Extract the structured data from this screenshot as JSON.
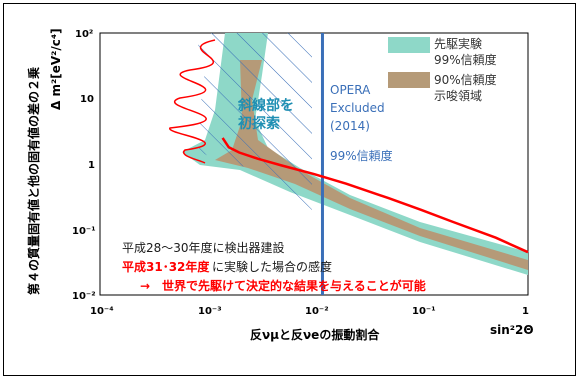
{
  "chart_data": {
    "type": "line",
    "xscale": "log",
    "yscale": "log",
    "xlim": [
      0.0001,
      1
    ],
    "ylim": [
      0.01,
      100
    ],
    "xticks": [
      "10⁻⁴",
      "10⁻³",
      "10⁻²",
      "10⁻¹",
      "1"
    ],
    "yticks": [
      "10⁻²",
      "10⁻¹",
      "1",
      "10",
      "10²"
    ],
    "xlabel": "反νμと反νeの振動割合",
    "xlabel_right": "sin²2Θ",
    "ylabel": "第４の質量固有値と他の固有値の差の２乗",
    "ylabel_unit": "Δ m²[eV²/c⁴]",
    "legend": [
      {
        "label_line1": "先駆実験",
        "label_line2": "99%信頼度",
        "color": "#8ed8c8"
      },
      {
        "label_line1": "90%信頼度",
        "label_line2": "示唆領域",
        "color": "#b59a78"
      }
    ],
    "series": [
      {
        "name": "",
        "color": "#ff0000",
        "x": [
          0.0014,
          0.0016,
          0.002,
          0.003,
          0.005,
          0.01,
          0.02,
          0.05,
          0.1,
          0.2,
          0.5,
          1.0
        ],
        "y": [
          2.5,
          1.8,
          1.5,
          1.2,
          0.95,
          0.7,
          0.5,
          0.3,
          0.2,
          0.13,
          0.075,
          0.045
        ]
      }
    ],
    "annotations": {
      "opera": {
        "line1": "OPERA",
        "line2": "Excluded",
        "line3": "(2014)",
        "x": 0.012
      },
      "hatched_label_line1": "斜線部を",
      "hatched_label_line2": "初探索",
      "conf_label": "99%信頼度",
      "text_line1": "平成28〜30年度に検出器建設",
      "text_line2_red": "平成31･32年度",
      "text_line2_rest": "に実験した場合の感度",
      "text_line3": "→　世界で先駆けて決定的な結果を与えることが可能"
    },
    "colors": {
      "cyan_band": "#8ed8c8",
      "brown_band": "#b59a78",
      "hatch": "#3a6fb8",
      "opera_line": "#3a6fb8",
      "sensitivity": "#ff0000"
    }
  }
}
